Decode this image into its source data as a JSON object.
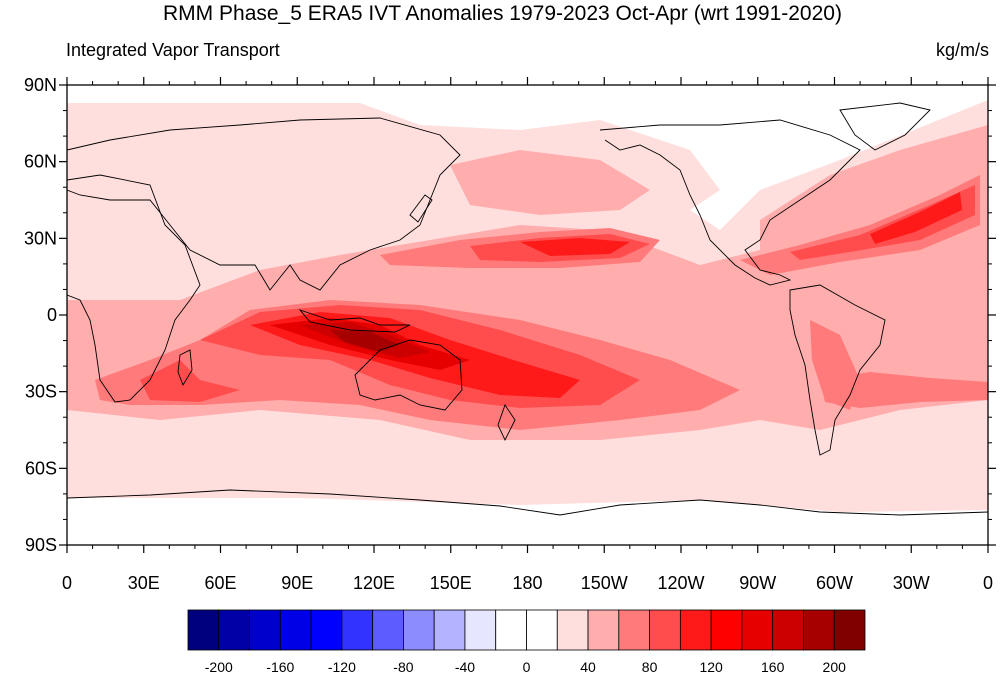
{
  "map": {
    "title": "RMM Phase_5 ERA5 IVT Anomalies 1979-2023 Oct-Apr (wrt 1991-2020)",
    "left_string": "Integrated Vapor Transport",
    "units": "kg/m/s",
    "lat_ticks": [
      {
        "lat": 90,
        "label": "90N"
      },
      {
        "lat": 60,
        "label": "60N"
      },
      {
        "lat": 30,
        "label": "30N"
      },
      {
        "lat": 0,
        "label": "0"
      },
      {
        "lat": -30,
        "label": "30S"
      },
      {
        "lat": -60,
        "label": "60S"
      },
      {
        "lat": -90,
        "label": "90S"
      }
    ],
    "lon_ticks": [
      {
        "lon": 0,
        "label": "0"
      },
      {
        "lon": 30,
        "label": "30E"
      },
      {
        "lon": 60,
        "label": "60E"
      },
      {
        "lon": 90,
        "label": "90E"
      },
      {
        "lon": 120,
        "label": "120E"
      },
      {
        "lon": 150,
        "label": "150E"
      },
      {
        "lon": 180,
        "label": "180"
      },
      {
        "lon": 210,
        "label": "150W"
      },
      {
        "lon": 240,
        "label": "120W"
      },
      {
        "lon": 270,
        "label": "90W"
      },
      {
        "lon": 300,
        "label": "60W"
      },
      {
        "lon": 330,
        "label": "30W"
      },
      {
        "lon": 360,
        "label": "0"
      }
    ]
  },
  "colorbar": {
    "colors": [
      "#00007f",
      "#0000a6",
      "#0000cc",
      "#0000e6",
      "#0000ff",
      "#3333ff",
      "#5c5cff",
      "#8c8cff",
      "#b3b3ff",
      "#e6e6ff",
      "#ffffff",
      "#ffffff",
      "#ffdede",
      "#ffadad",
      "#ff7a7a",
      "#ff4d4d",
      "#ff1a1a",
      "#ff0000",
      "#e60000",
      "#cc0000",
      "#a60000",
      "#800000"
    ],
    "labels": [
      "-200",
      "-160",
      "-120",
      "-80",
      "-40",
      "0",
      "40",
      "80",
      "120",
      "160",
      "200"
    ]
  },
  "anomaly_levels": {
    "l1": "#ffdede",
    "l2": "#ffadad",
    "l3": "#ff7a7a",
    "l4": "#ff4d4d",
    "l5": "#ff1a1a",
    "l6": "#e60000",
    "l7": "#cc0000",
    "l8": "#a60000"
  }
}
